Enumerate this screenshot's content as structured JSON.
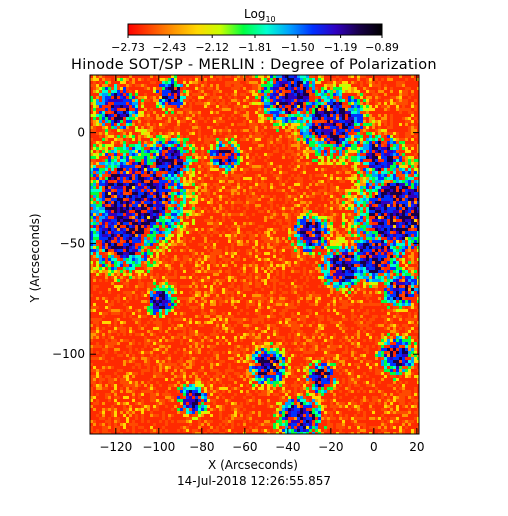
{
  "chart_data": {
    "type": "heatmap",
    "title": "Hinode SOT/SP - MERLIN : Degree of Polarization",
    "xlabel": "X (Arcseconds)",
    "ylabel": "Y (Arcseconds)",
    "xlim": [
      -132,
      21
    ],
    "ylim": [
      -136,
      26
    ],
    "xticks": [
      -120,
      -100,
      -80,
      -60,
      -40,
      -20,
      0,
      20
    ],
    "xtick_labels": [
      "−120",
      "−100",
      "−80",
      "−60",
      "−40",
      "−20",
      "0",
      "20"
    ],
    "yticks": [
      0,
      -50,
      -100
    ],
    "ytick_labels": [
      "0",
      "−50",
      "−100"
    ],
    "colorbar": {
      "title_base": "Log",
      "title_sub": "10",
      "range": [
        -2.73,
        -0.89
      ],
      "tick_values": [
        -2.73,
        -2.43,
        -2.12,
        -1.81,
        -1.5,
        -1.19,
        -0.89
      ],
      "tick_labels": [
        "−2.73",
        "−2.43",
        "−2.12",
        "−1.81",
        "−1.50",
        "−1.19",
        "−0.89"
      ],
      "colors": [
        "#ff0000",
        "#ff4a00",
        "#ff9600",
        "#ffd800",
        "#c8ff00",
        "#00ff40",
        "#00ffd0",
        "#00a0ff",
        "#0030ff",
        "#3000c0",
        "#180048",
        "#000000"
      ]
    },
    "annotation": "14-Jul-2018 12:26:55.857"
  }
}
